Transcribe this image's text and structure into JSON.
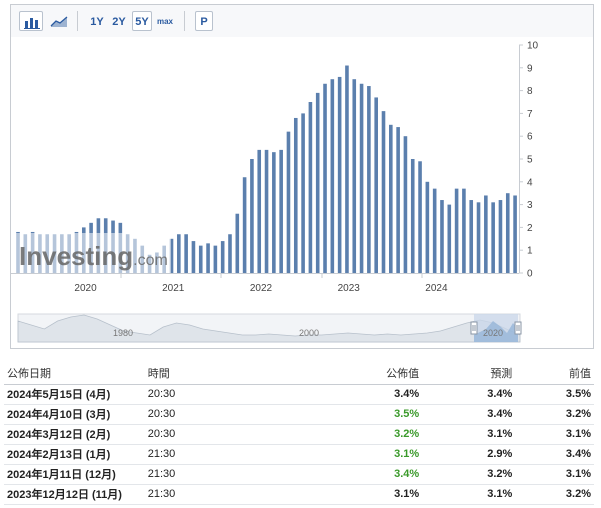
{
  "toolbar": {
    "bar_icon": "bar-chart-icon",
    "area_icon": "area-chart-icon",
    "ranges": [
      "1Y",
      "2Y",
      "5Y",
      "max"
    ],
    "selected_range": "5Y",
    "p_button": "P"
  },
  "chart_data": {
    "type": "bar",
    "y_ticks": [
      "10",
      "9",
      "8",
      "7",
      "6",
      "5",
      "4",
      "3",
      "2",
      "1",
      "0"
    ],
    "ylim": [
      0,
      10
    ],
    "x_ticks": [
      "2020",
      "2021",
      "2022",
      "2023",
      "2024"
    ],
    "watermark": "Investing.com",
    "color": "#5b7fad",
    "values": [
      1.8,
      1.7,
      1.8,
      1.7,
      1.7,
      1.7,
      1.7,
      1.7,
      1.8,
      2.0,
      2.2,
      2.4,
      2.4,
      2.3,
      2.2,
      1.7,
      1.5,
      1.2,
      0.8,
      0.9,
      1.2,
      1.5,
      1.7,
      1.7,
      1.4,
      1.2,
      1.3,
      1.2,
      1.4,
      1.7,
      2.6,
      4.2,
      5.0,
      5.4,
      5.4,
      5.3,
      5.4,
      6.2,
      6.8,
      7.0,
      7.5,
      7.9,
      8.3,
      8.5,
      8.6,
      9.1,
      8.5,
      8.3,
      8.2,
      7.7,
      7.1,
      6.5,
      6.4,
      6.0,
      5.0,
      4.9,
      4.0,
      3.7,
      3.2,
      3.0,
      3.7,
      3.7,
      3.2,
      3.1,
      3.4,
      3.1,
      3.2,
      3.5,
      3.4
    ],
    "navigator": {
      "labels": [
        "1980",
        "2000",
        "2020"
      ]
    }
  },
  "table": {
    "headers": [
      "公佈日期",
      "時間",
      "公佈值",
      "預測",
      "前值"
    ],
    "rows": [
      {
        "date": "2024年5月15日 (4月)",
        "time": "20:30",
        "actual": "3.4%",
        "forecast": "3.4%",
        "previous": "3.5%",
        "actual_color": "neutral"
      },
      {
        "date": "2024年4月10日 (3月)",
        "time": "20:30",
        "actual": "3.5%",
        "forecast": "3.4%",
        "previous": "3.2%",
        "actual_color": "positive"
      },
      {
        "date": "2024年3月12日 (2月)",
        "time": "20:30",
        "actual": "3.2%",
        "forecast": "3.1%",
        "previous": "3.1%",
        "actual_color": "positive"
      },
      {
        "date": "2024年2月13日 (1月)",
        "time": "21:30",
        "actual": "3.1%",
        "forecast": "2.9%",
        "previous": "3.4%",
        "actual_color": "positive"
      },
      {
        "date": "2024年1月11日 (12月)",
        "time": "21:30",
        "actual": "3.4%",
        "forecast": "3.2%",
        "previous": "3.1%",
        "actual_color": "positive"
      },
      {
        "date": "2023年12月12日 (11月)",
        "time": "21:30",
        "actual": "3.1%",
        "forecast": "3.1%",
        "previous": "3.2%",
        "actual_color": "neutral"
      }
    ]
  }
}
